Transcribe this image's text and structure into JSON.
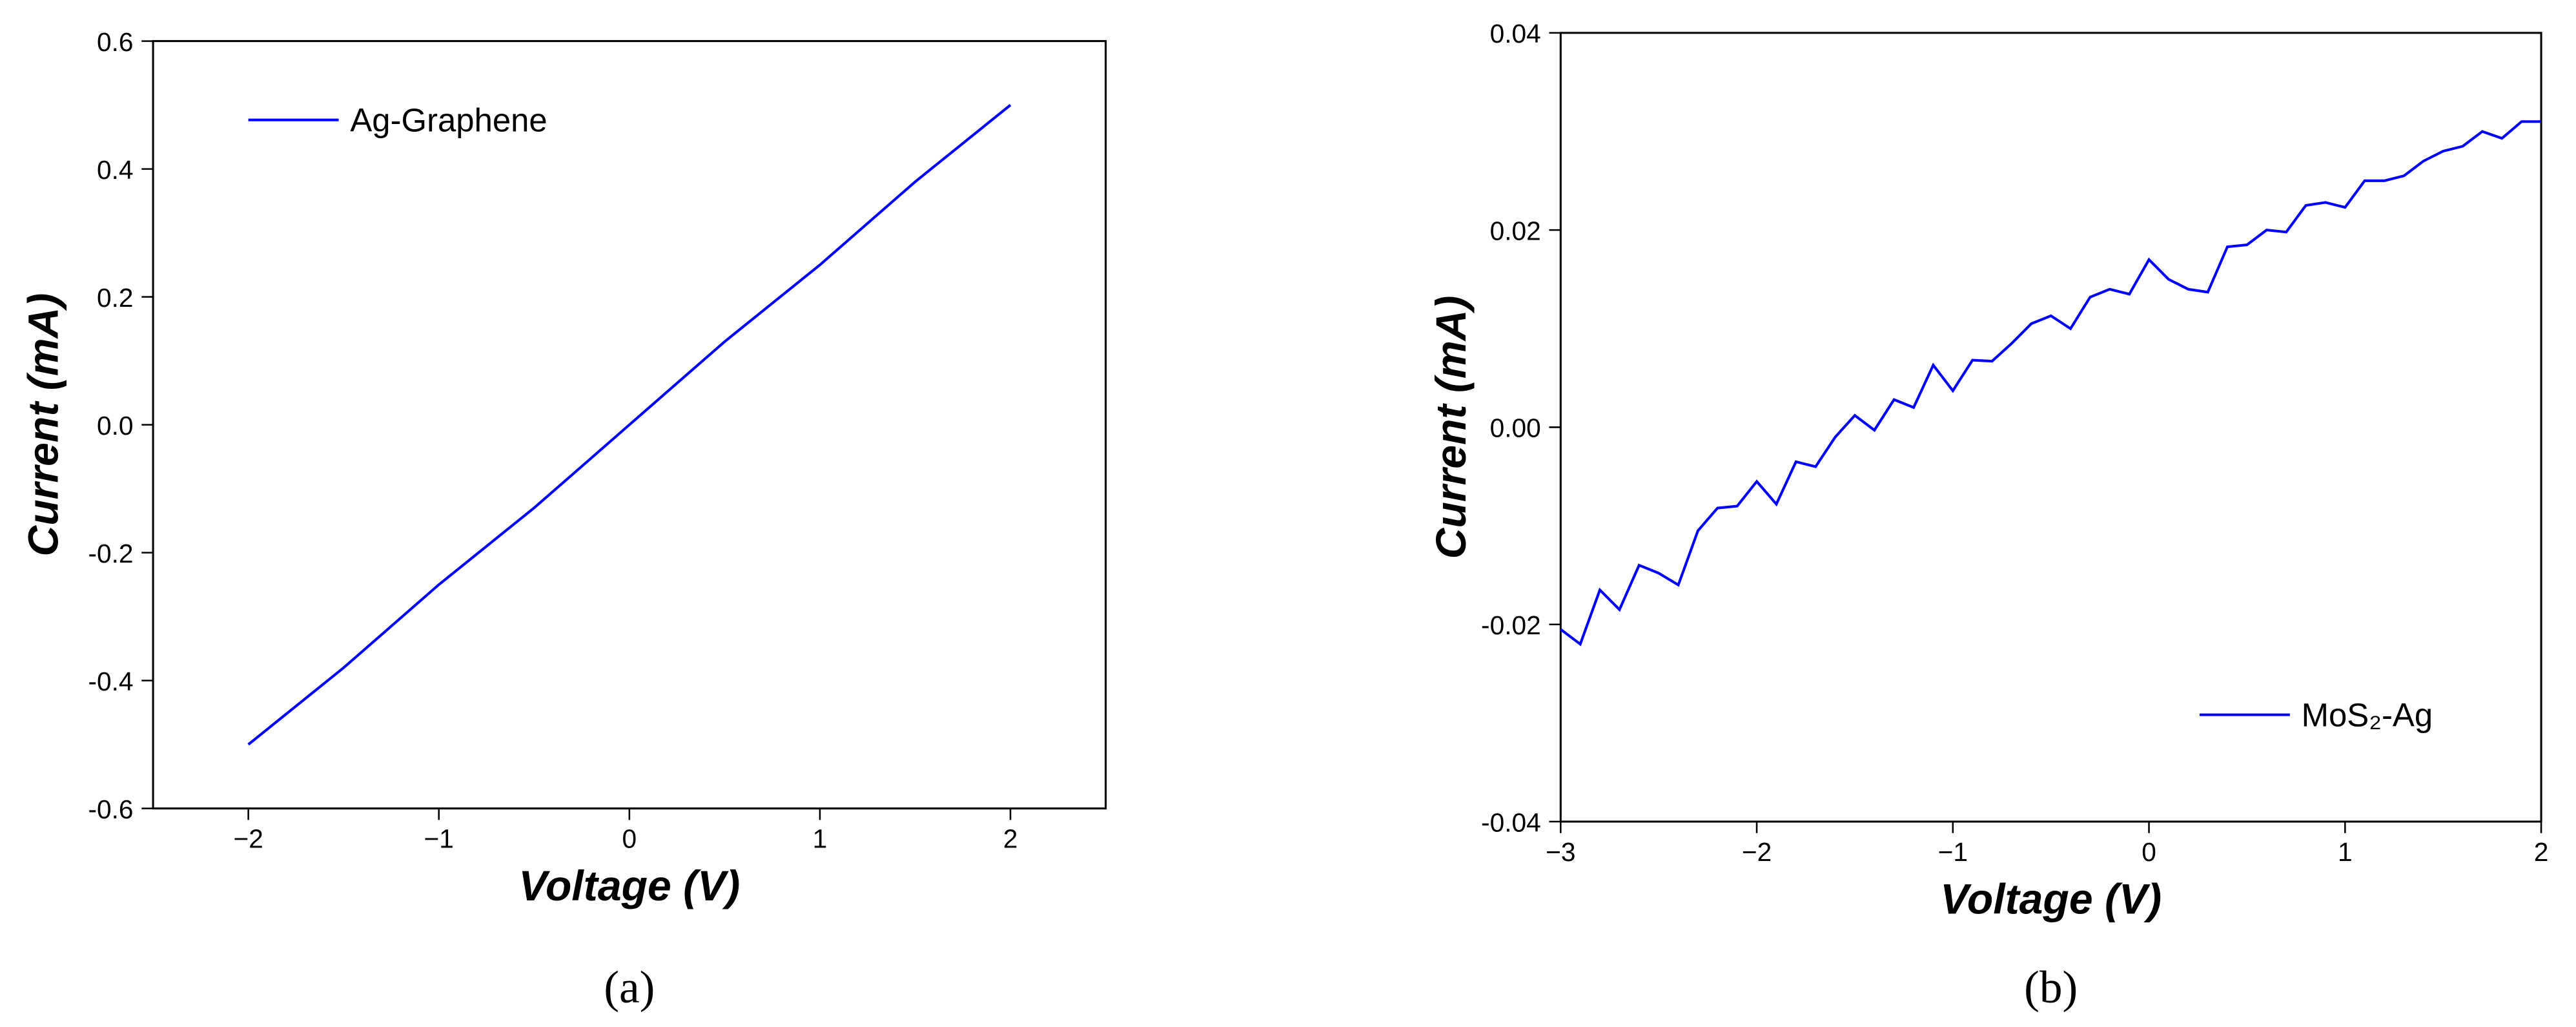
{
  "chart_data": [
    {
      "type": "line",
      "panel_label": "(a)",
      "x_label": "Voltage (V)",
      "y_label": "Current (mA)",
      "legend": "upper left",
      "xlim": [
        -2.5,
        2.5
      ],
      "ylim": [
        -0.6,
        0.6
      ],
      "xticks": [
        {
          "value": -2,
          "label": "−2"
        },
        {
          "value": -1,
          "label": "−1"
        },
        0,
        1,
        2
      ],
      "yticks": [
        -0.6,
        -0.4,
        -0.2,
        {
          "value": 0,
          "label": "0.0"
        },
        0.2,
        0.4,
        0.6
      ],
      "x": [
        -2,
        -1.5,
        -1,
        -0.5,
        0,
        0.5,
        1,
        1.5,
        2
      ],
      "series": [
        {
          "name": "Ag-Graphene",
          "color": "#0000ff",
          "values": [
            -0.5,
            -0.38,
            -0.25,
            -0.13,
            0,
            0.13,
            0.25,
            0.38,
            0.5
          ]
        }
      ]
    },
    {
      "type": "line",
      "panel_label": "(b)",
      "x_label": "Voltage (V)",
      "y_label": "Current (mA)",
      "legend": "lower right",
      "xlim": [
        -3,
        2
      ],
      "ylim": [
        -0.04,
        0.04
      ],
      "xticks": [
        {
          "value": -3,
          "label": "−3"
        },
        {
          "value": -2,
          "label": "−2"
        },
        {
          "value": -1,
          "label": "−1"
        },
        0,
        1,
        2
      ],
      "yticks": [
        -0.04,
        -0.02,
        {
          "value": 0,
          "label": "0.00"
        },
        0.02,
        0.04
      ],
      "x": [
        -3,
        -2.9,
        -2.8,
        -2.7,
        -2.6,
        -2.5,
        -2.4,
        -2.3,
        -2.2,
        -2.1,
        -2,
        -1.9,
        -1.8,
        -1.7,
        -1.6,
        -1.5,
        -1.4,
        -1.3,
        -1.2,
        -1.1,
        -1,
        -0.9,
        -0.8,
        -0.7,
        -0.6,
        -0.5,
        -0.4,
        -0.3,
        -0.2,
        -0.1,
        0,
        0.1,
        0.2,
        0.3,
        0.4,
        0.5,
        0.6,
        0.7,
        0.8,
        0.9,
        1,
        1.1,
        1.2,
        1.3,
        1.4,
        1.5,
        1.6,
        1.7,
        1.8,
        1.9,
        2
      ],
      "series": [
        {
          "name": "MoS₂-Ag",
          "color": "#0000ff",
          "values": [
            -0.0205,
            -0.022,
            -0.0165,
            -0.0185,
            -0.014,
            -0.0148,
            -0.016,
            -0.0105,
            -0.0082,
            -0.008,
            -0.0055,
            -0.0078,
            -0.0035,
            -0.004,
            -0.001,
            0.0012,
            -0.0003,
            0.0028,
            0.002,
            0.0063,
            0.0037,
            0.0068,
            0.0067,
            0.0085,
            0.0105,
            0.0113,
            0.01,
            0.0132,
            0.014,
            0.0135,
            0.017,
            0.015,
            0.014,
            0.0137,
            0.0183,
            0.0185,
            0.02,
            0.0198,
            0.0225,
            0.0228,
            0.0223,
            0.025,
            0.025,
            0.0255,
            0.027,
            0.028,
            0.0285,
            0.03,
            0.0293,
            0.031,
            0.031
          ]
        }
      ]
    }
  ]
}
